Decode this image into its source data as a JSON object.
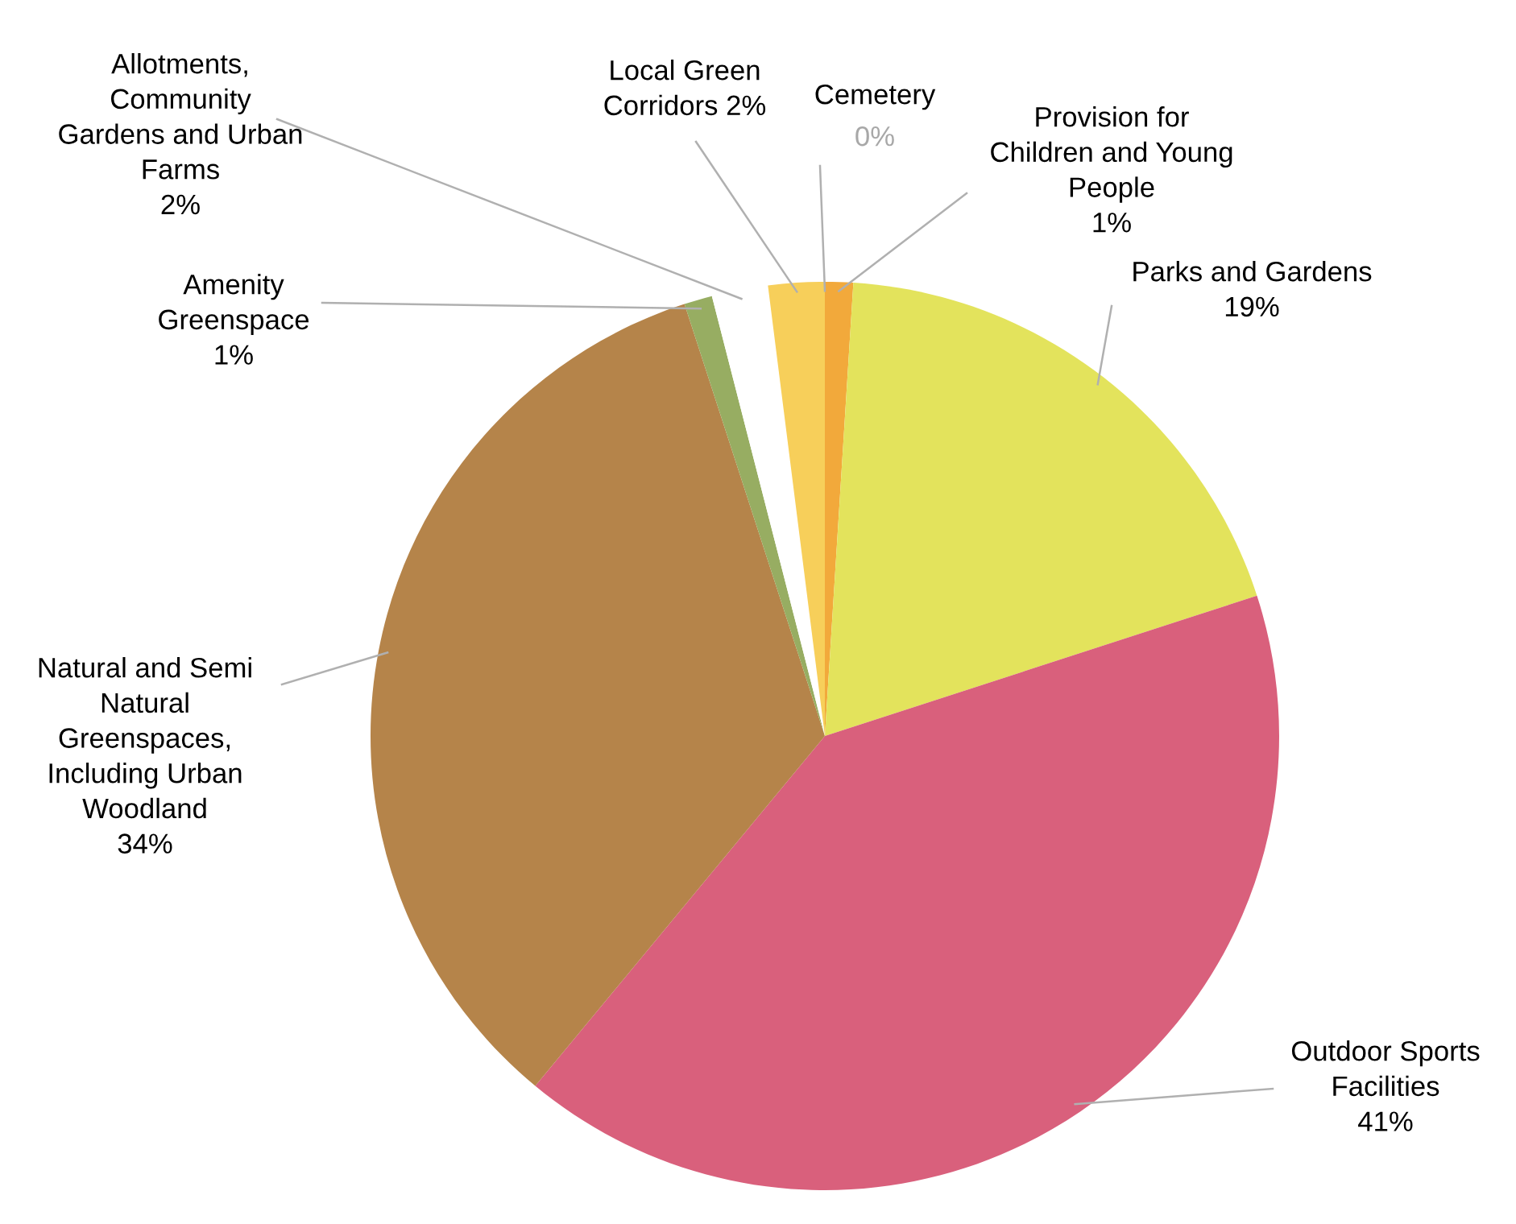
{
  "chart_data": {
    "type": "pie",
    "categories": [
      "Cemetery",
      "Provision for\nChildren and Young\nPeople",
      "Parks and Gardens",
      "Outdoor Sports\nFacilities",
      "Natural and Semi\nNatural\nGreenspaces,\nIncluding Urban\nWoodland",
      "Amenity\nGreenspace",
      "Allotments,\nCommunity\nGardens and Urban\nFarms",
      "Local Green\nCorridors"
    ],
    "values": [
      0,
      1,
      19,
      41,
      34,
      1,
      2,
      2
    ],
    "colors": [
      "#a8a8a8",
      "#f2a93b",
      "#e3e35c",
      "#d9607c",
      "#b5844a",
      "#97ad62",
      "#ffffff",
      "#f7cf5a"
    ],
    "value_labels": [
      "0%",
      "1%",
      "19%",
      "41%",
      "34%",
      "1%",
      "2%",
      "2%"
    ]
  }
}
